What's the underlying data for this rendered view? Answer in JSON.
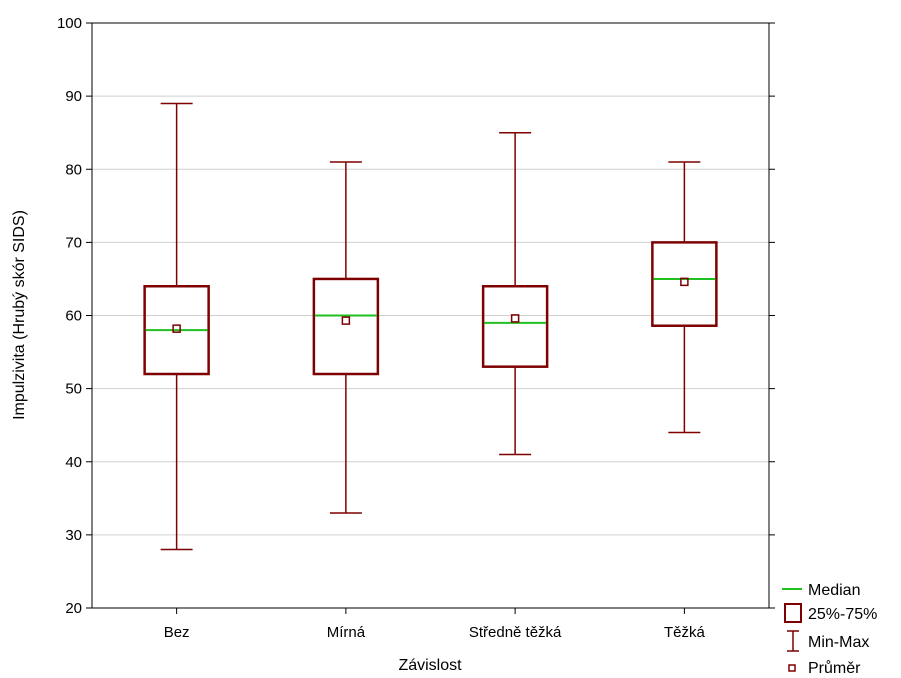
{
  "colors": {
    "box": "#7f0000",
    "median": "#20c020",
    "grid": "#d0d0d0",
    "axis": "#000000"
  },
  "legend": {
    "median": "Median",
    "box": "25%-75%",
    "whisker": "Min-Max",
    "mean": "Průměr"
  },
  "chart_data": {
    "type": "boxplot",
    "xlabel": "Závislost",
    "ylabel": "Impulzivita (Hrubý skór SIDS)",
    "ylim": [
      20,
      100
    ],
    "yticks": [
      20,
      30,
      40,
      50,
      60,
      70,
      80,
      90,
      100
    ],
    "grid": "horizontal",
    "legend_position": "bottom-right",
    "categories": [
      "Bez",
      "Mírná",
      "Středně těžká",
      "Těžká"
    ],
    "min": [
      28,
      33,
      41,
      44
    ],
    "q1": [
      52,
      52,
      53,
      58.6
    ],
    "median": [
      58,
      60,
      59,
      65
    ],
    "q3": [
      64,
      65,
      64,
      70
    ],
    "max": [
      89,
      81,
      85,
      81
    ],
    "mean": [
      58.2,
      59.3,
      59.6,
      64.6
    ]
  }
}
